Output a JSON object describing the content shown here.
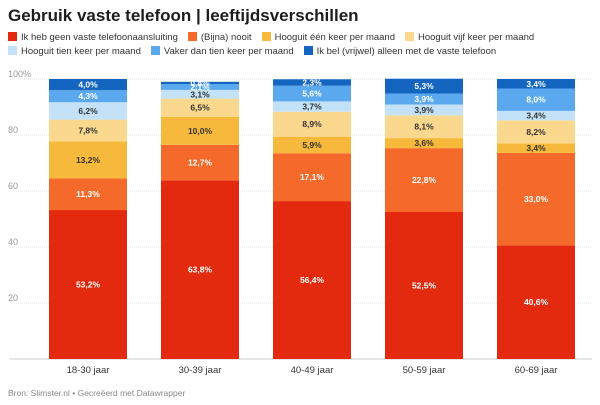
{
  "header": {
    "title": "Gebruik vaste telefoon | leeftijdsverschillen"
  },
  "footer": {
    "source": "Bron: Slimster.nl • Gecreëerd met Datawrapper"
  },
  "chart_data": {
    "type": "bar",
    "stacked": true,
    "categories": [
      "18-30 jaar",
      "30-39 jaar",
      "40-49 jaar",
      "50-59 jaar",
      "60-69 jaar"
    ],
    "ylim": [
      0,
      100
    ],
    "yticks": [
      20,
      40,
      60,
      80,
      100
    ],
    "ytick_labels": [
      "20",
      "40",
      "60",
      "80",
      "100%"
    ],
    "grid": true,
    "legend_position": "top",
    "series": [
      {
        "name": "Ik heb geen vaste telefoonaansluiting",
        "color": "#e32a0e",
        "label_color": "#ffffff",
        "values": [
          53.2,
          63.8,
          56.4,
          52.5,
          40.6
        ],
        "labels": [
          "53,2%",
          "63,8%",
          "56,4%",
          "52,5%",
          "40,6%"
        ]
      },
      {
        "name": "(Bijna) nooit",
        "color": "#f56a2a",
        "label_color": "#ffffff",
        "values": [
          11.3,
          12.7,
          17.1,
          22.8,
          33.0
        ],
        "labels": [
          "11,3%",
          "12,7%",
          "17,1%",
          "22,8%",
          "33,0%"
        ]
      },
      {
        "name": "Hooguit één keer per maand",
        "color": "#f7b93c",
        "label_color": "#333333",
        "values": [
          13.2,
          10.0,
          5.9,
          3.6,
          3.4
        ],
        "labels": [
          "13,2%",
          "10,0%",
          "5,9%",
          "3,6%",
          "3,4%"
        ]
      },
      {
        "name": "Hooguit vijf keer per maand",
        "color": "#fad98e",
        "label_color": "#333333",
        "values": [
          7.8,
          6.5,
          8.9,
          8.1,
          8.2
        ],
        "labels": [
          "7,8%",
          "6,5%",
          "8,9%",
          "8,1%",
          "8,2%"
        ]
      },
      {
        "name": "Hooguit tien keer per maand",
        "color": "#c3e2f7",
        "label_color": "#333333",
        "values": [
          6.2,
          3.1,
          3.7,
          3.9,
          3.4
        ],
        "labels": [
          "6,2%",
          "3,1%",
          "3,7%",
          "3,9%",
          "3,4%"
        ]
      },
      {
        "name": "Vaker dan tien keer per maand",
        "color": "#5aa9ee",
        "label_color": "#ffffff",
        "values": [
          4.3,
          2.1,
          5.6,
          3.9,
          8.0
        ],
        "labels": [
          "4,3%",
          "2,1%",
          "5,6%",
          "3,9%",
          "8,0%"
        ]
      },
      {
        "name": "Ik bel (vrijwel) alleen met de vaste telefoon",
        "color": "#1465c0",
        "label_color": "#ffffff",
        "values": [
          4.0,
          0.8,
          2.3,
          5.3,
          3.4
        ],
        "labels": [
          "4,0%",
          "0,8%",
          "2,3%",
          "5,3%",
          "3,4%"
        ]
      }
    ]
  }
}
